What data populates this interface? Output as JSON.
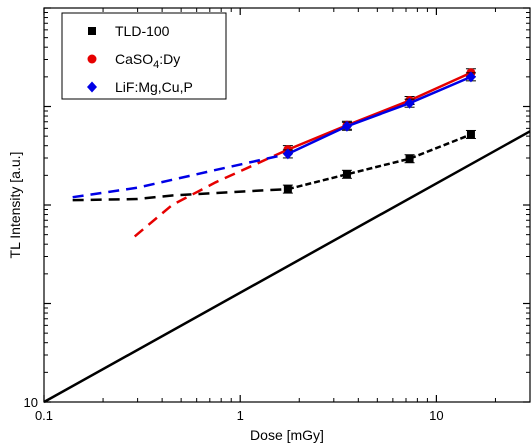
{
  "chart_data": {
    "type": "line",
    "title": "",
    "xlabel": "Dose [mGy]",
    "ylabel": "TL Intensity [a.u.]",
    "xscale": "log",
    "yscale": "log",
    "xlim": [
      0.1,
      30
    ],
    "ylim": [
      10,
      100000
    ],
    "xticks": [
      {
        "value": 0.1,
        "label": "0.1"
      },
      {
        "value": 1,
        "label": "1"
      },
      {
        "value": 10,
        "label": "10"
      }
    ],
    "yticks": [
      {
        "value": 10,
        "label": "10"
      }
    ],
    "grid": false,
    "legend_position": "top-left",
    "series": [
      {
        "name": "TLD-100",
        "name_sub": "",
        "name_suffix": "",
        "color": "#000000",
        "marker": "square",
        "points": [
          {
            "x": 1.75,
            "y": 1450
          },
          {
            "x": 3.5,
            "y": 2050
          },
          {
            "x": 7.3,
            "y": 2950
          },
          {
            "x": 15,
            "y": 5200
          }
        ],
        "fit_dashed": [
          {
            "x": 0.14,
            "y": 1120
          },
          {
            "x": 0.3,
            "y": 1150
          },
          {
            "x": 0.45,
            "y": 1250
          },
          {
            "x": 0.9,
            "y": 1350
          },
          {
            "x": 1.75,
            "y": 1450
          },
          {
            "x": 3.5,
            "y": 2050
          },
          {
            "x": 7.3,
            "y": 2950
          },
          {
            "x": 15,
            "y": 5200
          }
        ]
      },
      {
        "name": "CaSO",
        "name_sub": "4",
        "name_suffix": ":Dy",
        "color": "#e60000",
        "marker": "circle",
        "points": [
          {
            "x": 1.75,
            "y": 3650
          },
          {
            "x": 3.5,
            "y": 6450
          },
          {
            "x": 7.3,
            "y": 11500
          },
          {
            "x": 15,
            "y": 22000
          }
        ],
        "fit_dashed": [
          {
            "x": 0.29,
            "y": 480
          },
          {
            "x": 0.45,
            "y": 1000
          },
          {
            "x": 0.75,
            "y": 1700
          },
          {
            "x": 1.75,
            "y": 3650
          },
          {
            "x": 3.5,
            "y": 6450
          },
          {
            "x": 7.3,
            "y": 11500
          },
          {
            "x": 15,
            "y": 22000
          }
        ]
      },
      {
        "name": "LiF:Mg,Cu,P",
        "name_sub": "",
        "name_suffix": "",
        "color": "#0000e6",
        "marker": "diamond",
        "points": [
          {
            "x": 1.75,
            "y": 3300
          },
          {
            "x": 3.5,
            "y": 6300
          },
          {
            "x": 7.3,
            "y": 10800
          },
          {
            "x": 15,
            "y": 20000
          }
        ],
        "fit_dashed": [
          {
            "x": 0.14,
            "y": 1200
          },
          {
            "x": 0.3,
            "y": 1500
          },
          {
            "x": 0.7,
            "y": 2200
          },
          {
            "x": 1.75,
            "y": 3300
          },
          {
            "x": 3.5,
            "y": 6300
          },
          {
            "x": 7.3,
            "y": 10800
          },
          {
            "x": 15,
            "y": 20000
          }
        ]
      }
    ],
    "reference_line": {
      "color": "#000000",
      "points": [
        {
          "x": 0.1,
          "y": 10
        },
        {
          "x": 30,
          "y": 5600
        }
      ]
    }
  }
}
